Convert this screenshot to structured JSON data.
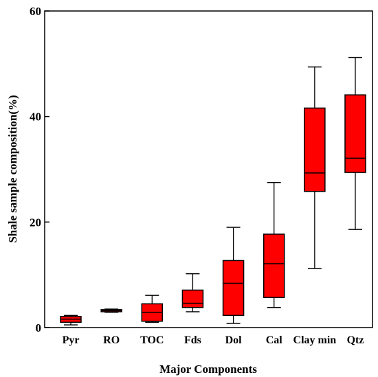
{
  "chart_data": {
    "type": "box",
    "xlabel": "Major Components",
    "ylabel": "Shale sample composition(%)",
    "ylim": [
      0,
      60
    ],
    "yticks": [
      "0",
      "20",
      "40",
      "60"
    ],
    "ytick_values": [
      0,
      20,
      40,
      60
    ],
    "grid": false,
    "legend": "none",
    "box_color": "#ff0000",
    "line_color": "#000000",
    "categories": [
      "Pyr",
      "RO",
      "TOC",
      "Fds",
      "Dol",
      "Cal",
      "Clay min",
      "Qtz"
    ],
    "boxes": [
      {
        "min": 0.5,
        "q1": 1.0,
        "median": 1.6,
        "q3": 2.1,
        "max": 2.3
      },
      {
        "min": 2.9,
        "q1": 3.0,
        "median": 3.2,
        "q3": 3.4,
        "max": 3.5
      },
      {
        "min": 1.0,
        "q1": 1.2,
        "median": 2.9,
        "q3": 4.5,
        "max": 6.1
      },
      {
        "min": 3.0,
        "q1": 3.8,
        "median": 4.6,
        "q3": 7.1,
        "max": 10.2
      },
      {
        "min": 0.8,
        "q1": 2.3,
        "median": 8.4,
        "q3": 12.7,
        "max": 19.0
      },
      {
        "min": 3.8,
        "q1": 5.7,
        "median": 12.1,
        "q3": 17.7,
        "max": 27.5
      },
      {
        "min": 11.2,
        "q1": 25.8,
        "median": 29.3,
        "q3": 41.6,
        "max": 49.4
      },
      {
        "min": 18.6,
        "q1": 29.4,
        "median": 32.1,
        "q3": 44.1,
        "max": 51.2
      }
    ]
  }
}
